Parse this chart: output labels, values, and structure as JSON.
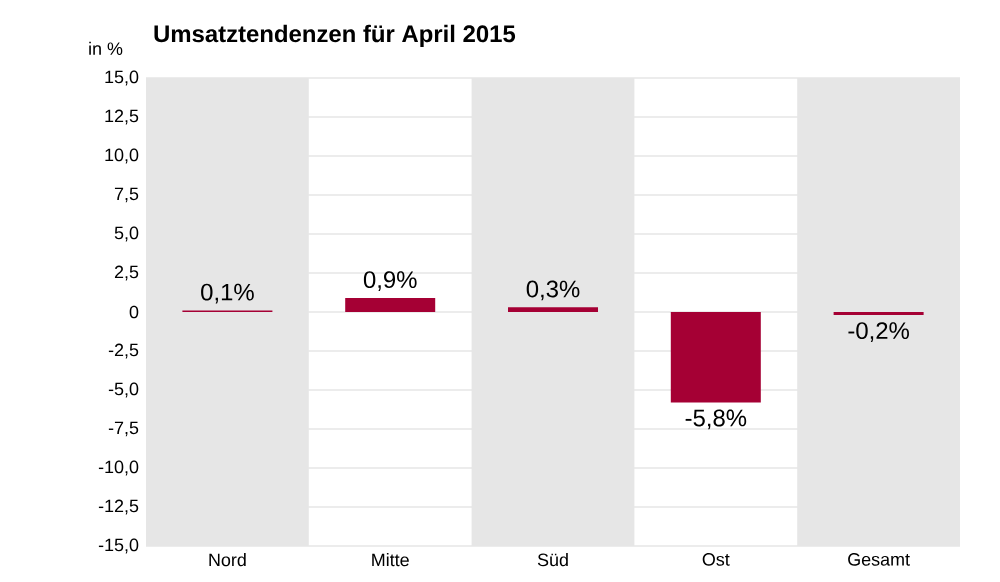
{
  "chart_data": {
    "type": "bar",
    "title": "Umsatztendenzen für April 2015",
    "ylabel": "in %",
    "categories": [
      "Nord",
      "Mitte",
      "Süd",
      "Ost",
      "Gesamt"
    ],
    "values": [
      0.1,
      0.9,
      0.3,
      -5.8,
      -0.2
    ],
    "value_labels": [
      "0,1%",
      "0,9%",
      "0,3%",
      "-5,8%",
      "-0,2%"
    ],
    "color": "#a50034",
    "ylim": [
      -15,
      15
    ],
    "yticks": [
      {
        "value": 15,
        "label": "15,0"
      },
      {
        "value": 12.5,
        "label": "12,5"
      },
      {
        "value": 10,
        "label": "10,0"
      },
      {
        "value": 7.5,
        "label": "7,5"
      },
      {
        "value": 5,
        "label": "5,0"
      },
      {
        "value": 2.5,
        "label": "2,5"
      },
      {
        "value": 0,
        "label": "0"
      },
      {
        "value": -2.5,
        "label": "-2,5"
      },
      {
        "value": -5,
        "label": "-5,0"
      },
      {
        "value": -7.5,
        "label": "-7,5"
      },
      {
        "value": -10,
        "label": "-10,0"
      },
      {
        "value": -12.5,
        "label": "-12,5"
      },
      {
        "value": -15,
        "label": "-15,0"
      }
    ],
    "bands": [
      {
        "axis": "x",
        "from": "Nord",
        "to": "Nord",
        "color": "#e6e6e6"
      },
      {
        "axis": "x",
        "from": "Süd",
        "to": "Süd",
        "color": "#e6e6e6"
      },
      {
        "axis": "x",
        "from": "Gesamt",
        "to": "Gesamt",
        "color": "#e6e6e6"
      }
    ],
    "grid": "y"
  }
}
